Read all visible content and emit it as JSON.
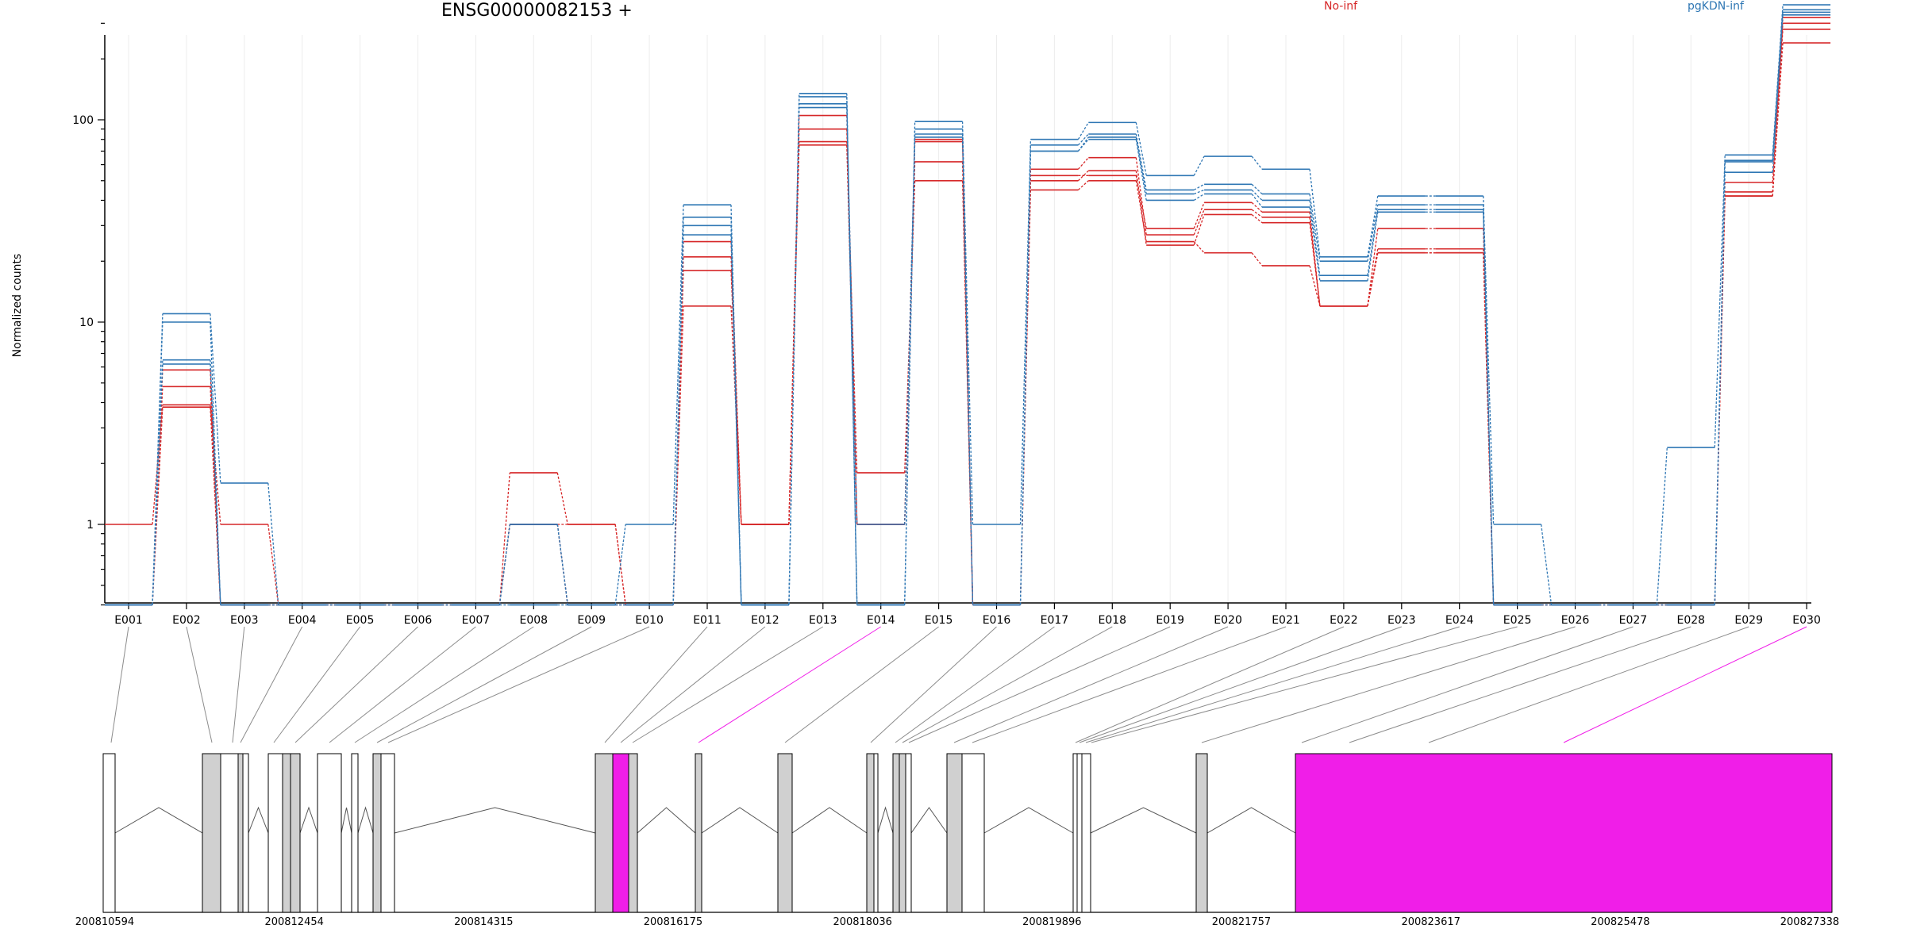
{
  "chart_data": {
    "type": "line",
    "title": "ENSG00000082153 +",
    "ylabel": "Normalized counts",
    "yscale": "log",
    "ylim": [
      0.39,
      480
    ],
    "yticks": [
      1,
      10,
      100
    ],
    "grid": true,
    "legend_placement": "top",
    "categories": [
      "E001",
      "E002",
      "E003",
      "E004",
      "E005",
      "E006",
      "E007",
      "E008",
      "E009",
      "E010",
      "E011",
      "E012",
      "E013",
      "E014",
      "E015",
      "E016",
      "E017",
      "E018",
      "E019",
      "E020",
      "E021",
      "E022",
      "E023",
      "E024",
      "E025",
      "E026",
      "E027",
      "E028",
      "E029",
      "E030"
    ],
    "groups": [
      {
        "name": "No-inf",
        "color": "#d62728"
      },
      {
        "name": "pgKDN-inf",
        "color": "#2f77b4"
      }
    ],
    "series": [
      {
        "group": "No-inf",
        "values": [
          1.0,
          3.9,
          1.0,
          0.4,
          0.4,
          0.4,
          0.4,
          1.8,
          1.0,
          0.4,
          12,
          1.0,
          78,
          1.8,
          50,
          0.4,
          45,
          50,
          25,
          22,
          19,
          12,
          22,
          22,
          0.4,
          0.4,
          0.4,
          0.4,
          42,
          240
        ]
      },
      {
        "group": "No-inf",
        "values": [
          0.4,
          4.8,
          0.4,
          0.4,
          0.4,
          0.4,
          0.4,
          1.0,
          1.0,
          0.4,
          18,
          1.0,
          90,
          1.0,
          62,
          0.4,
          50,
          56,
          24,
          34,
          31,
          12,
          23,
          23,
          0.4,
          0.4,
          0.4,
          0.4,
          44,
          280
        ]
      },
      {
        "group": "No-inf",
        "values": [
          0.4,
          5.8,
          0.4,
          0.4,
          0.4,
          0.4,
          0.4,
          1.0,
          0.4,
          0.4,
          21,
          1.0,
          105,
          1.0,
          78,
          0.4,
          57,
          65,
          27,
          36,
          33,
          12,
          29,
          29,
          0.4,
          0.4,
          0.4,
          0.4,
          49,
          300
        ]
      },
      {
        "group": "No-inf",
        "values": [
          0.4,
          3.8,
          0.4,
          0.4,
          0.4,
          0.4,
          0.4,
          1.0,
          0.4,
          0.4,
          25,
          1.0,
          75,
          1.0,
          80,
          0.4,
          53,
          53,
          29,
          39,
          35,
          12,
          22,
          22,
          0.4,
          0.4,
          0.4,
          0.4,
          42,
          320
        ]
      },
      {
        "group": "pgKDN-inf",
        "values": [
          0.4,
          11,
          1.6,
          0.4,
          0.4,
          0.4,
          0.4,
          1.0,
          0.4,
          1.0,
          38,
          0.4,
          135,
          0.4,
          98,
          1.0,
          80,
          97,
          53,
          66,
          57,
          21,
          42,
          42,
          1.0,
          0.4,
          0.4,
          2.4,
          67,
          370
        ]
      },
      {
        "group": "pgKDN-inf",
        "values": [
          0.4,
          10,
          0.4,
          0.4,
          0.4,
          0.4,
          0.4,
          1.0,
          0.4,
          0.4,
          33,
          0.4,
          130,
          0.4,
          90,
          0.4,
          75,
          85,
          45,
          48,
          43,
          20,
          38,
          38,
          0.4,
          0.4,
          0.4,
          0.4,
          63,
          350
        ]
      },
      {
        "group": "pgKDN-inf",
        "values": [
          0.4,
          6.5,
          0.4,
          0.4,
          0.4,
          0.4,
          0.4,
          0.4,
          0.4,
          0.4,
          30,
          0.4,
          120,
          0.4,
          85,
          0.4,
          70,
          82,
          43,
          45,
          40,
          17,
          36,
          36,
          0.4,
          0.4,
          0.4,
          0.4,
          62,
          340
        ]
      },
      {
        "group": "pgKDN-inf",
        "values": [
          0.4,
          6.2,
          0.4,
          0.4,
          0.4,
          0.4,
          0.4,
          0.4,
          0.4,
          0.4,
          27,
          0.4,
          115,
          1.0,
          82,
          0.4,
          70,
          80,
          40,
          43,
          37,
          16,
          35,
          35,
          0.4,
          0.4,
          0.4,
          0.4,
          55,
          330
        ]
      }
    ],
    "gene_model": {
      "coordinates": [
        "200810594",
        "200812454",
        "200814315",
        "200816175",
        "200818036",
        "200819896",
        "200821757",
        "200823617",
        "200825478",
        "200827338"
      ],
      "highlight_color": "#f01ee8",
      "highlighted_exons": [
        "E014",
        "E030"
      ]
    }
  }
}
